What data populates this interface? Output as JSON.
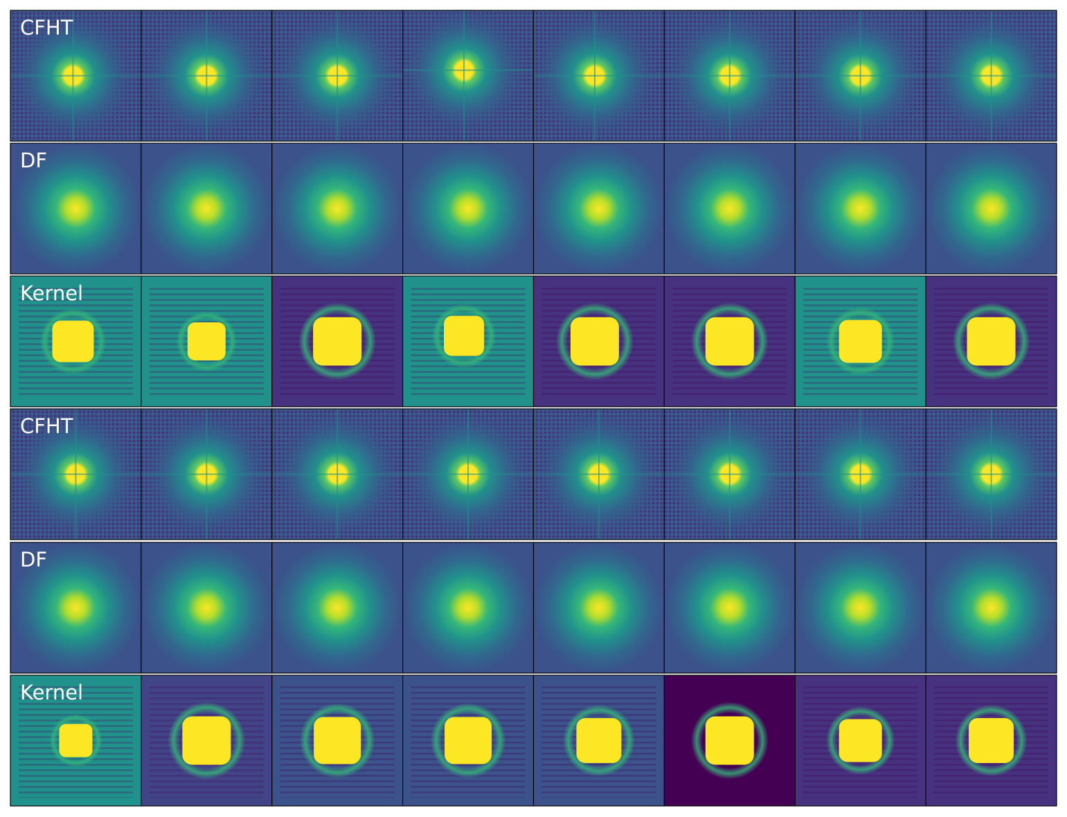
{
  "rows": [
    {
      "label": "CFHT"
    },
    {
      "label": "DF"
    },
    {
      "label": "Kernel"
    },
    {
      "label": "CFHT"
    },
    {
      "label": "DF"
    },
    {
      "label": "Kernel"
    }
  ]
}
